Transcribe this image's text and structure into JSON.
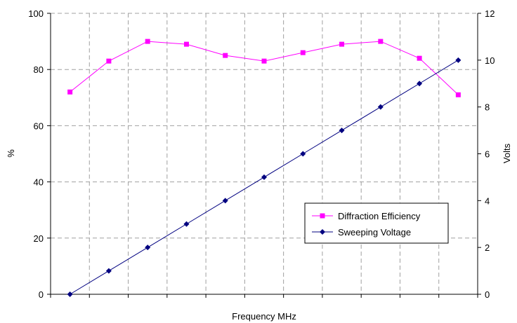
{
  "chart_data": {
    "type": "line",
    "xlabel": "Frequency MHz",
    "ylabel_left": "%",
    "ylabel_right": "Volts",
    "ylim_left": [
      0,
      100
    ],
    "ylim_right": [
      0,
      12
    ],
    "yticks_left": [
      "0",
      "20",
      "40",
      "60",
      "80",
      "100"
    ],
    "yticks_right": [
      "0",
      "2",
      "4",
      "6",
      "8",
      "10",
      "12"
    ],
    "x_count": 11,
    "grid": true,
    "legend_position": "lower-right",
    "series": [
      {
        "name": "Diffraction Efficiency",
        "axis": "left",
        "color": "#ff00ff",
        "marker": "square",
        "values": [
          72,
          83,
          90,
          89,
          85,
          83,
          86,
          89,
          90,
          84,
          71
        ]
      },
      {
        "name": "Sweeping Voltage",
        "axis": "right",
        "color": "#000080",
        "marker": "diamond",
        "values": [
          0,
          1,
          2,
          3,
          4,
          5,
          6,
          7,
          8,
          9,
          10
        ]
      }
    ]
  }
}
